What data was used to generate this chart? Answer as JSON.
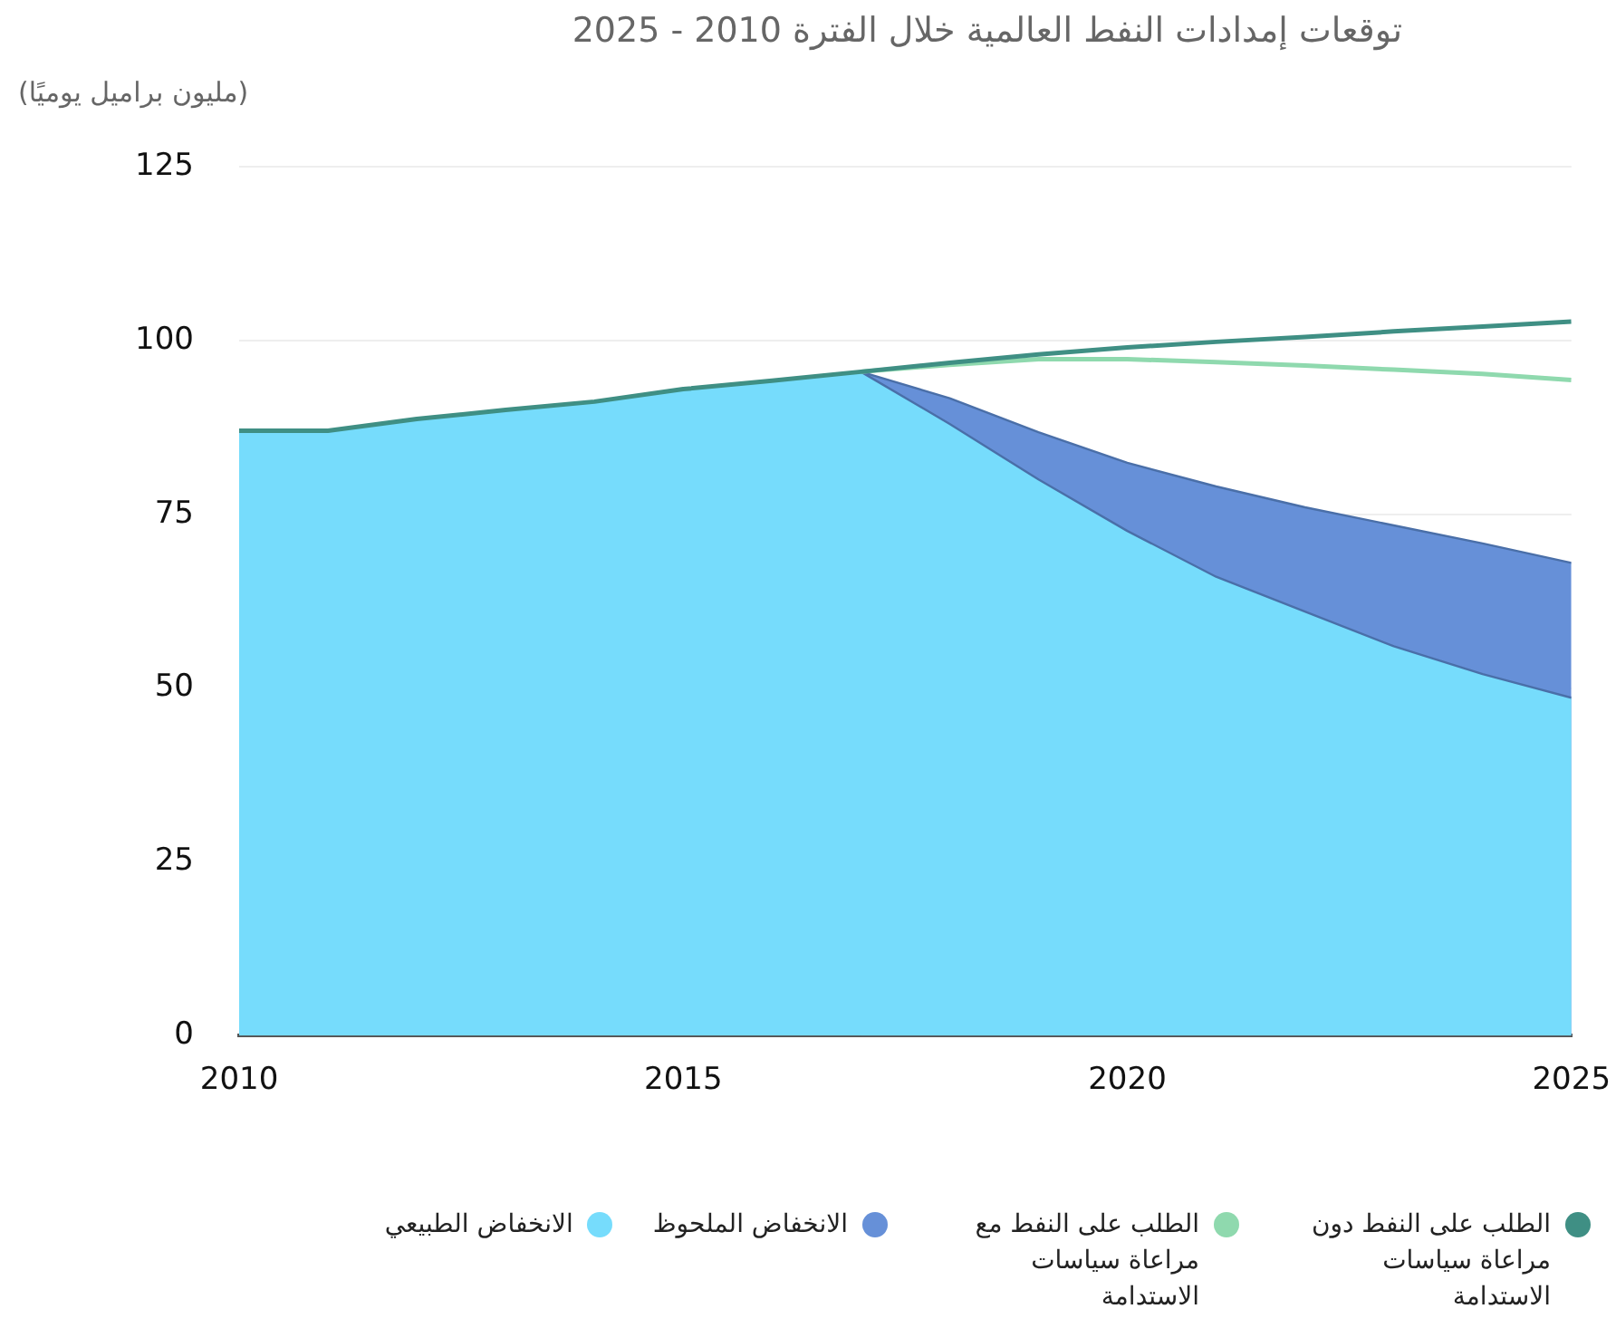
{
  "chart_data": {
    "type": "area",
    "title": "توقعات إمدادات النفط العالمية خلال الفترة 2010 - 2025",
    "ylabel": "(مليون براميل يوميًا)",
    "x": [
      2010,
      2011,
      2012,
      2013,
      2014,
      2015,
      2016,
      2017,
      2018,
      2019,
      2020,
      2021,
      2022,
      2023,
      2024,
      2025
    ],
    "xlim": [
      2010,
      2025
    ],
    "xticks": [
      2010,
      2015,
      2020,
      2025
    ],
    "ylim": [
      0,
      125
    ],
    "yticks": [
      0,
      25,
      50,
      75,
      100,
      125
    ],
    "grid": "y",
    "legend": "bottom",
    "marker": "none",
    "series": [
      {
        "name": "الطلب على النفط دون مراعاة سياسات الاستدامة",
        "type": "line",
        "color": "#3f8f84",
        "values": [
          87,
          87,
          88.7,
          90,
          91.2,
          93,
          94.2,
          95.5,
          96.8,
          98,
          99,
          99.8,
          100.5,
          101.3,
          102,
          102.7
        ]
      },
      {
        "name": "الطلب على النفط مع مراعاة سياسات الاستدامة",
        "type": "line",
        "color": "#8fd9ae",
        "values": [
          null,
          null,
          null,
          null,
          null,
          null,
          null,
          95.5,
          96.5,
          97.3,
          97.3,
          96.9,
          96.4,
          95.8,
          95.2,
          94.3
        ]
      },
      {
        "name": "الانخفاض الملحوظ",
        "color": "#6690d8",
        "values": [
          null,
          null,
          null,
          null,
          null,
          null,
          null,
          95.5,
          91.7,
          86.8,
          82.4,
          79,
          76,
          73.4,
          70.8,
          68
        ]
      },
      {
        "name": "الانخفاض الطبيعي",
        "color": "#76dcfc",
        "values": [
          87,
          87,
          88.7,
          90,
          91.2,
          93,
          94.2,
          95.5,
          88,
          80,
          72.6,
          66,
          61,
          56,
          52,
          48.6
        ]
      }
    ]
  }
}
